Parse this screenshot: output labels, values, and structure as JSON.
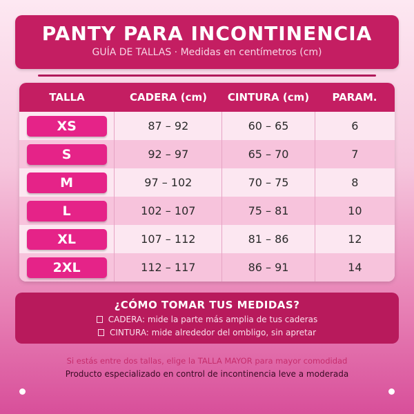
{
  "header": {
    "title": "PANTY PARA INCONTINENCIA",
    "subtitle": "GUÍA DE TALLAS · Medidas en centímetros (cm)"
  },
  "table": {
    "columns": [
      "TALLA",
      "CADERA (cm)",
      "CINTURA (cm)",
      "PARAM."
    ],
    "rows": [
      {
        "size": "XS",
        "hip": "87 – 92",
        "waist": "60 – 65",
        "param": "6"
      },
      {
        "size": "S",
        "hip": "92 – 97",
        "waist": "65 – 70",
        "param": "7"
      },
      {
        "size": "M",
        "hip": "97 – 102",
        "waist": "70 – 75",
        "param": "8"
      },
      {
        "size": "L",
        "hip": "102 – 107",
        "waist": "75 – 81",
        "param": "10"
      },
      {
        "size": "XL",
        "hip": "107 – 112",
        "waist": "81 – 86",
        "param": "12"
      },
      {
        "size": "2XL",
        "hip": "112 – 117",
        "waist": "86 – 91",
        "param": "14"
      }
    ]
  },
  "howto": {
    "title": "¿CÓMO TOMAR TUS MEDIDAS?",
    "hip_line": "CADERA: mide la parte más amplia de tus caderas",
    "waist_line": "CINTURA: mide alrededor del ombligo, sin apretar"
  },
  "notes": {
    "tip": "Si estás entre dos tallas, elige la TALLA MAYOR para mayor comodidad",
    "footer": "Producto especializado en control de incontinencia leve a moderada"
  },
  "colors": {
    "accent": "#c41e62",
    "badge": "#e52388"
  }
}
